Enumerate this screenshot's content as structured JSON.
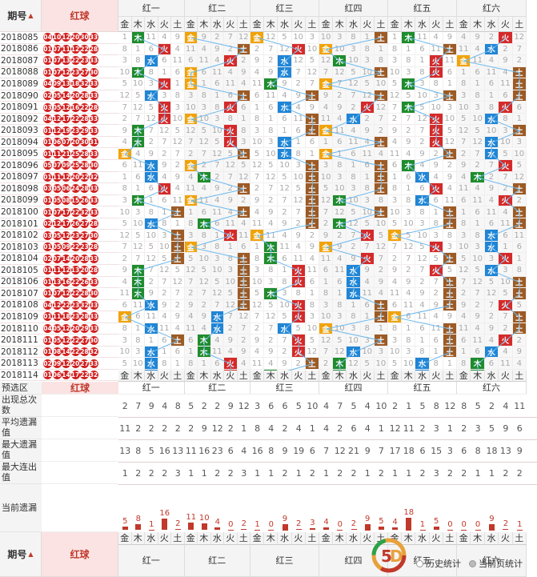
{
  "header": {
    "period_label": "期号",
    "sort_icon": "up-arrow-icon",
    "red_label": "红球",
    "groups": [
      "红一",
      "红二",
      "红三",
      "红四",
      "红五",
      "红六"
    ],
    "elements": [
      "金",
      "木",
      "水",
      "火",
      "土"
    ]
  },
  "colors": {
    "金": "#f0a30a",
    "木": "#1e8c2e",
    "水": "#1f85d6",
    "火": "#d42a2a",
    "土": "#9c5a25",
    "ball": "#d12020"
  },
  "rows": [
    {
      "period": "2018085",
      "balls": [
        "04",
        "10",
        "12",
        "20",
        "30",
        "33"
      ],
      "marks": [
        1,
        0,
        0,
        4,
        1,
        3
      ]
    },
    {
      "period": "2018086",
      "balls": [
        "01",
        "07",
        "11",
        "12",
        "22",
        "28"
      ],
      "marks": [
        3,
        4,
        3,
        0,
        4,
        2
      ]
    },
    {
      "period": "2018087",
      "balls": [
        "01",
        "07",
        "13",
        "22",
        "23",
        "33"
      ],
      "marks": [
        2,
        3,
        2,
        1,
        3,
        0
      ]
    },
    {
      "period": "2018088",
      "balls": [
        "01",
        "07",
        "12",
        "23",
        "27",
        "30"
      ],
      "marks": [
        1,
        0,
        2,
        4,
        3,
        4
      ]
    },
    {
      "period": "2018089",
      "balls": [
        "04",
        "09",
        "13",
        "18",
        "32",
        "33"
      ],
      "marks": [
        3,
        0,
        1,
        0,
        1,
        4
      ]
    },
    {
      "period": "2018090",
      "balls": [
        "02",
        "05",
        "14",
        "20",
        "28",
        "33"
      ],
      "marks": [
        2,
        4,
        4,
        4,
        4,
        4
      ]
    },
    {
      "period": "2018091",
      "balls": [
        "03",
        "05",
        "12",
        "16",
        "22",
        "28"
      ],
      "marks": [
        3,
        3,
        2,
        3,
        1,
        3
      ]
    },
    {
      "period": "2018092",
      "balls": [
        "04",
        "12",
        "17",
        "22",
        "28",
        "33"
      ],
      "marks": [
        3,
        0,
        4,
        2,
        3,
        2
      ]
    },
    {
      "period": "2018093",
      "balls": [
        "01",
        "12",
        "19",
        "23",
        "29",
        "33"
      ],
      "marks": [
        1,
        3,
        4,
        0,
        3,
        4
      ]
    },
    {
      "period": "2018094",
      "balls": [
        "01",
        "06",
        "07",
        "20",
        "30",
        "31"
      ],
      "marks": [
        1,
        3,
        2,
        4,
        3,
        2
      ]
    },
    {
      "period": "2018095",
      "balls": [
        "01",
        "11",
        "21",
        "25",
        "28",
        "33"
      ],
      "marks": [
        0,
        4,
        2,
        0,
        4,
        2
      ]
    },
    {
      "period": "2018096",
      "balls": [
        "05",
        "07",
        "09",
        "25",
        "28",
        "30"
      ],
      "marks": [
        2,
        0,
        4,
        4,
        1,
        3
      ]
    },
    {
      "period": "2018097",
      "balls": [
        "01",
        "11",
        "12",
        "20",
        "22",
        "32"
      ],
      "marks": [
        2,
        1,
        4,
        4,
        2,
        1
      ]
    },
    {
      "period": "2018098",
      "balls": [
        "03",
        "05",
        "06",
        "24",
        "28",
        "33"
      ],
      "marks": [
        3,
        4,
        4,
        4,
        3,
        4
      ]
    },
    {
      "period": "2018099",
      "balls": [
        "01",
        "05",
        "08",
        "15",
        "26",
        "33"
      ],
      "marks": [
        1,
        0,
        4,
        1,
        2,
        3
      ]
    },
    {
      "period": "2018100",
      "balls": [
        "01",
        "07",
        "17",
        "22",
        "32",
        "33"
      ],
      "marks": [
        4,
        4,
        4,
        4,
        4,
        4
      ]
    },
    {
      "period": "2018101",
      "balls": [
        "02",
        "12",
        "17",
        "26",
        "27",
        "28"
      ],
      "marks": [
        2,
        1,
        4,
        1,
        4,
        4
      ]
    },
    {
      "period": "2018102",
      "balls": [
        "03",
        "05",
        "12",
        "23",
        "27",
        "30"
      ],
      "marks": [
        4,
        3,
        0,
        3,
        0,
        2
      ]
    },
    {
      "period": "2018103",
      "balls": [
        "01",
        "05",
        "09",
        "22",
        "23",
        "28"
      ],
      "marks": [
        4,
        0,
        1,
        0,
        3,
        2
      ]
    },
    {
      "period": "2018104",
      "balls": [
        "02",
        "07",
        "14",
        "20",
        "28",
        "33"
      ],
      "marks": [
        4,
        4,
        1,
        3,
        4,
        3
      ]
    },
    {
      "period": "2018105",
      "balls": [
        "01",
        "11",
        "12",
        "13",
        "20",
        "28"
      ],
      "marks": [
        1,
        4,
        3,
        2,
        3,
        2
      ]
    },
    {
      "period": "2018106",
      "balls": [
        "01",
        "13",
        "16",
        "22",
        "26",
        "33"
      ],
      "marks": [
        1,
        4,
        3,
        2,
        4,
        4
      ]
    },
    {
      "period": "2018107",
      "balls": [
        "01",
        "07",
        "12",
        "22",
        "28",
        "30"
      ],
      "marks": [
        1,
        4,
        1,
        2,
        4,
        4
      ]
    },
    {
      "period": "2018108",
      "balls": [
        "04",
        "12",
        "22",
        "23",
        "32",
        "33"
      ],
      "marks": [
        2,
        4,
        3,
        4,
        4,
        3
      ]
    },
    {
      "period": "2018109",
      "balls": [
        "01",
        "11",
        "18",
        "23",
        "28",
        "33"
      ],
      "marks": [
        0,
        2,
        3,
        4,
        0,
        4
      ]
    },
    {
      "period": "2018110",
      "balls": [
        "04",
        "05",
        "12",
        "20",
        "29",
        "33"
      ],
      "marks": [
        2,
        2,
        2,
        0,
        4,
        4
      ]
    },
    {
      "period": "2018111",
      "balls": [
        "01",
        "05",
        "12",
        "22",
        "27",
        "30"
      ],
      "marks": [
        4,
        1,
        3,
        4,
        4,
        3
      ]
    },
    {
      "period": "2018112",
      "balls": [
        "01",
        "08",
        "14",
        "22",
        "28",
        "32"
      ],
      "marks": [
        2,
        1,
        3,
        2,
        4,
        2
      ]
    },
    {
      "period": "2018113",
      "balls": [
        "02",
        "09",
        "12",
        "20",
        "27",
        "33"
      ],
      "marks": [
        2,
        3,
        4,
        1,
        2,
        1
      ]
    },
    {
      "period": "2018114",
      "balls": [
        "01",
        "06",
        "14",
        "17",
        "22",
        "32"
      ],
      "marks": [
        2,
        3,
        1,
        1,
        2,
        1
      ]
    }
  ],
  "footer": {
    "preselect_label": "预选区",
    "red_label": "红球",
    "stat_labels": [
      "出现总次数",
      "平均遗漏值",
      "最大遗漏值",
      "最大连出值",
      "当前遗漏"
    ],
    "total": [
      [
        2,
        7,
        9,
        4,
        8
      ],
      [
        5,
        2,
        2,
        9,
        12
      ],
      [
        3,
        6,
        6,
        5,
        10
      ],
      [
        4,
        7,
        5,
        4,
        10
      ],
      [
        2,
        1,
        5,
        8,
        12
      ],
      [
        8,
        5,
        2,
        4,
        11
      ]
    ],
    "avg": [
      [
        11,
        2,
        2,
        2,
        2
      ],
      [
        2,
        9,
        12,
        2,
        1
      ],
      [
        8,
        4,
        2,
        4,
        1
      ],
      [
        4,
        2,
        6,
        4,
        1
      ],
      [
        12,
        11,
        2,
        3,
        1
      ],
      [
        2,
        3,
        5,
        9,
        6
      ]
    ],
    "maxmiss": [
      [
        13,
        8,
        5,
        16,
        13
      ],
      [
        11,
        16,
        23,
        6,
        4
      ],
      [
        16,
        8,
        9,
        19,
        6
      ],
      [
        7,
        12,
        21,
        9,
        7
      ],
      [
        17,
        18,
        6,
        15,
        3
      ],
      [
        6,
        8,
        18,
        13,
        9
      ]
    ],
    "maxrun": [
      [
        1,
        2,
        2,
        2,
        3
      ],
      [
        1,
        1,
        2,
        2,
        3
      ],
      [
        1,
        1,
        2,
        1,
        2
      ],
      [
        1,
        2,
        2,
        1,
        2
      ],
      [
        1,
        1,
        2,
        3,
        2
      ],
      [
        2,
        1,
        1,
        2,
        2
      ]
    ],
    "current": [
      [
        5,
        8,
        1,
        16,
        2
      ],
      [
        11,
        10,
        4,
        0,
        2
      ],
      [
        1,
        0,
        9,
        2,
        3
      ],
      [
        4,
        0,
        2,
        9,
        5
      ],
      [
        4,
        18,
        1,
        5,
        0
      ],
      [
        0,
        0,
        9,
        2,
        1
      ]
    ],
    "bottom_period_label": "期号",
    "radio_history": "历史统计",
    "radio_current": "当前页统计"
  }
}
